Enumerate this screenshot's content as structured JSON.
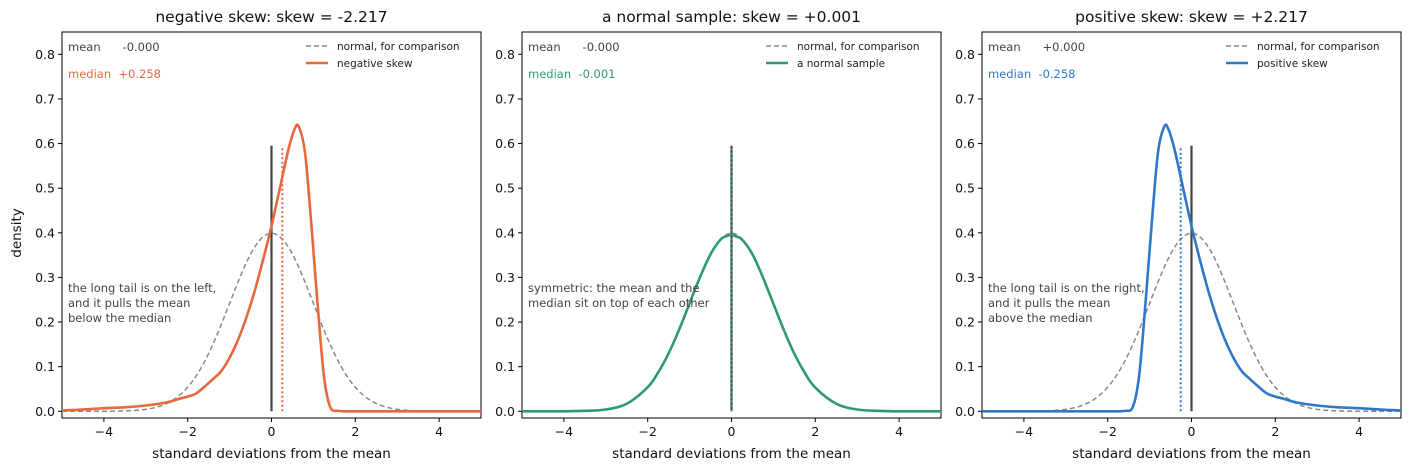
{
  "shared": {
    "ylabel": "density",
    "xlabel": "standard deviations from the mean",
    "xticks": [
      -4,
      -2,
      0,
      2,
      4
    ],
    "yticks": [
      0.0,
      0.1,
      0.2,
      0.3,
      0.4,
      0.5,
      0.6,
      0.7,
      0.8
    ],
    "xlim": [
      -5,
      5
    ],
    "ylim": [
      -0.015,
      0.85
    ],
    "normal_color": "#888888",
    "mean_line_color": "#444444",
    "mean_line_height": 0.595
  },
  "chart_data": [
    {
      "type": "line",
      "title": "negative skew: skew = -2.217",
      "xlabel": "standard deviations from the mean",
      "ylabel": "density",
      "color": "#e8683c",
      "mean_text": "mean      -0.000",
      "median_text": "median  +0.258",
      "mean": 0.0,
      "median": 0.258,
      "annotation": [
        "the long tail is on the left,",
        "and it pulls the mean",
        "below the median"
      ],
      "legend": [
        "normal, for comparison",
        "negative skew"
      ],
      "series": [
        {
          "name": "normal, for comparison",
          "style": "dashed",
          "reference": "standard normal density"
        },
        {
          "name": "negative skew",
          "style": "solid",
          "x": [
            -5.0,
            -4.5,
            -4.0,
            -3.5,
            -3.0,
            -2.5,
            -2.2,
            -2.0,
            -1.8,
            -1.6,
            -1.4,
            -1.2,
            -1.0,
            -0.8,
            -0.6,
            -0.4,
            -0.2,
            0.0,
            0.2,
            0.4,
            0.55,
            0.65,
            0.8,
            0.95,
            1.1,
            1.25,
            1.4,
            1.6,
            2.0,
            3.0,
            4.0,
            5.0
          ],
          "y": [
            0.002,
            0.004,
            0.007,
            0.009,
            0.013,
            0.02,
            0.028,
            0.033,
            0.04,
            0.055,
            0.072,
            0.09,
            0.12,
            0.16,
            0.21,
            0.27,
            0.34,
            0.415,
            0.5,
            0.585,
            0.632,
            0.638,
            0.58,
            0.42,
            0.24,
            0.08,
            0.01,
            0.001,
            0.0,
            0.0,
            0.0,
            0.0
          ]
        }
      ]
    },
    {
      "type": "line",
      "title": "a normal sample: skew = +0.001",
      "xlabel": "standard deviations from the mean",
      "ylabel": "",
      "color": "#2f9a6c",
      "mean_text": "mean      -0.000",
      "median_text": "median  -0.001",
      "mean": 0.0,
      "median": -0.001,
      "annotation": [
        "symmetric: the mean and the",
        "median sit on top of each other"
      ],
      "legend": [
        "normal, for comparison",
        "a normal sample"
      ],
      "series": [
        {
          "name": "normal, for comparison",
          "style": "dashed",
          "reference": "standard normal density"
        },
        {
          "name": "a normal sample",
          "style": "solid",
          "x": [
            -5.0,
            -4.0,
            -3.5,
            -3.0,
            -2.5,
            -2.0,
            -1.75,
            -1.5,
            -1.25,
            -1.0,
            -0.75,
            -0.5,
            -0.25,
            -0.1,
            0.0,
            0.1,
            0.25,
            0.5,
            0.75,
            1.0,
            1.25,
            1.5,
            1.75,
            2.0,
            2.5,
            3.0,
            3.5,
            4.0,
            5.0
          ],
          "y": [
            0.0,
            0.0,
            0.001,
            0.004,
            0.017,
            0.054,
            0.087,
            0.13,
            0.183,
            0.242,
            0.301,
            0.352,
            0.386,
            0.393,
            0.396,
            0.392,
            0.385,
            0.352,
            0.3,
            0.241,
            0.182,
            0.129,
            0.086,
            0.053,
            0.017,
            0.004,
            0.001,
            0.0,
            0.0
          ]
        }
      ]
    },
    {
      "type": "line",
      "title": "positive skew: skew = +2.217",
      "xlabel": "standard deviations from the mean",
      "ylabel": "",
      "color": "#2f78c9",
      "mean_text": "mean      +0.000",
      "median_text": "median  -0.258",
      "mean": 0.0,
      "median": -0.258,
      "annotation": [
        "the long tail is on the right,",
        "and it pulls the mean",
        "above the median"
      ],
      "legend": [
        "normal, for comparison",
        "positive skew"
      ],
      "series": [
        {
          "name": "normal, for comparison",
          "style": "dashed",
          "reference": "standard normal density"
        },
        {
          "name": "positive skew",
          "style": "solid",
          "x": [
            -5.0,
            -4.0,
            -3.0,
            -2.0,
            -1.6,
            -1.4,
            -1.25,
            -1.1,
            -0.95,
            -0.8,
            -0.65,
            -0.55,
            -0.4,
            -0.2,
            0.0,
            0.2,
            0.4,
            0.6,
            0.8,
            1.0,
            1.2,
            1.4,
            1.6,
            1.8,
            2.0,
            2.2,
            2.5,
            3.0,
            3.5,
            4.0,
            4.5,
            5.0
          ],
          "y": [
            0.0,
            0.0,
            0.0,
            0.0,
            0.001,
            0.01,
            0.08,
            0.24,
            0.42,
            0.58,
            0.638,
            0.632,
            0.585,
            0.5,
            0.415,
            0.34,
            0.27,
            0.21,
            0.16,
            0.12,
            0.09,
            0.072,
            0.055,
            0.04,
            0.033,
            0.028,
            0.02,
            0.013,
            0.009,
            0.007,
            0.004,
            0.002
          ]
        }
      ]
    }
  ]
}
